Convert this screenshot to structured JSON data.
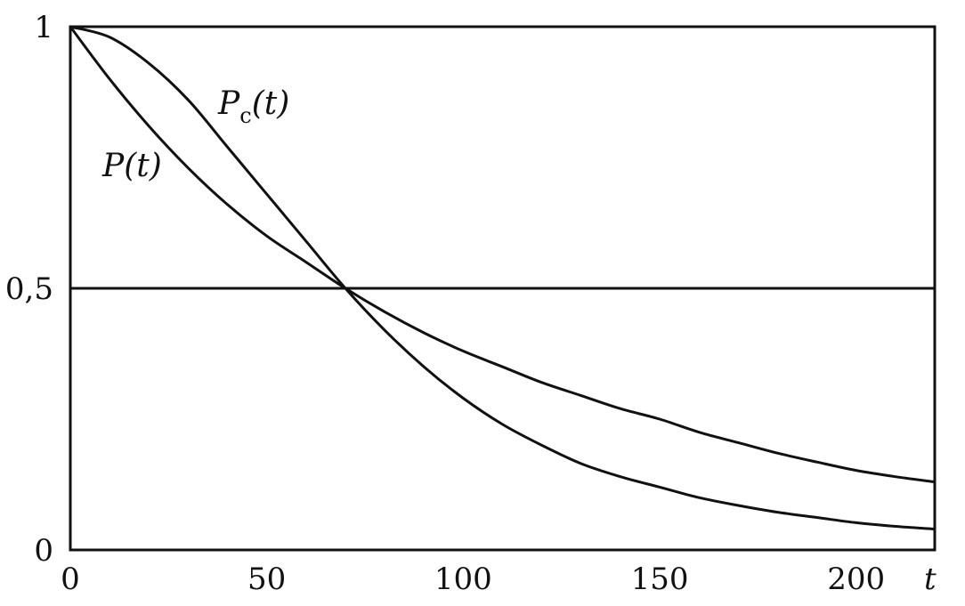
{
  "chart_data": {
    "type": "line",
    "xlabel": "t",
    "ylabel": "",
    "xlim": [
      0,
      220
    ],
    "ylim": [
      0,
      1
    ],
    "x_ticks": [
      "0",
      "50",
      "100",
      "150",
      "200"
    ],
    "y_ticks": [
      "0",
      "0,5",
      "1"
    ],
    "reference_line": {
      "y": 0.5
    },
    "x": [
      0,
      10,
      20,
      30,
      40,
      50,
      60,
      70,
      80,
      90,
      100,
      110,
      120,
      130,
      140,
      150,
      160,
      170,
      180,
      190,
      200,
      210,
      220
    ],
    "series": [
      {
        "name": "P(t)",
        "values": [
          1.0,
          0.9,
          0.81,
          0.73,
          0.66,
          0.6,
          0.55,
          0.5,
          0.455,
          0.415,
          0.38,
          0.35,
          0.32,
          0.295,
          0.27,
          0.25,
          0.225,
          0.205,
          0.185,
          0.168,
          0.152,
          0.14,
          0.13
        ]
      },
      {
        "name": "P_c(t)",
        "values": [
          1.0,
          0.98,
          0.93,
          0.86,
          0.77,
          0.68,
          0.59,
          0.5,
          0.42,
          0.35,
          0.29,
          0.24,
          0.2,
          0.165,
          0.14,
          0.12,
          0.1,
          0.085,
          0.072,
          0.062,
          0.052,
          0.045,
          0.04
        ]
      }
    ],
    "annotations": [
      {
        "main": "P",
        "sub": "c",
        "rest": "(t)",
        "series": "P_c(t)"
      },
      {
        "main": "P",
        "sub": "",
        "rest": "(t)",
        "series": "P(t)"
      }
    ]
  }
}
